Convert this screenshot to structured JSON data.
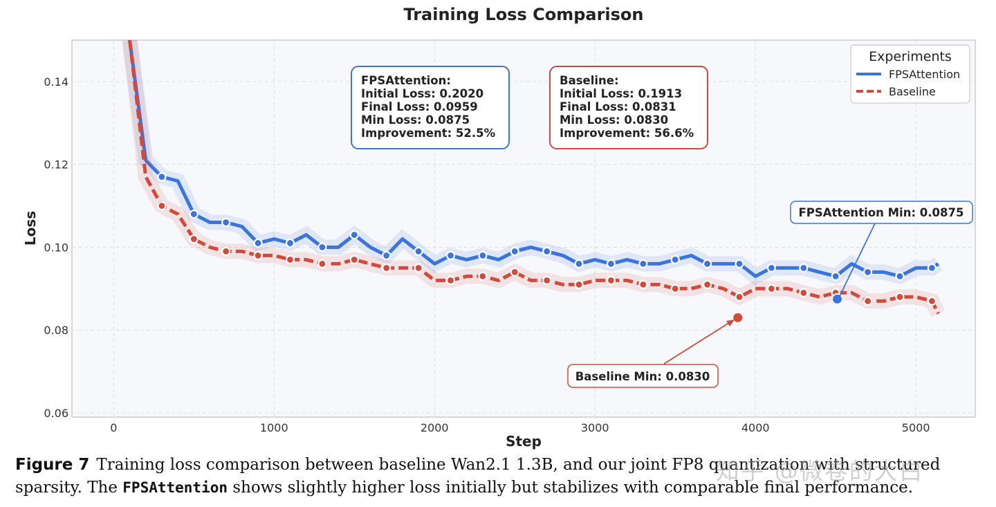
{
  "chart_data": {
    "type": "line",
    "title": "Training Loss Comparison",
    "xlabel": "Step",
    "ylabel": "Loss",
    "xlim": [
      -260,
      5370
    ],
    "ylim": [
      0.059,
      0.15
    ],
    "xticks": [
      0,
      1000,
      2000,
      3000,
      4000,
      5000
    ],
    "yticks": [
      0.06,
      0.08,
      0.1,
      0.12,
      0.14
    ],
    "ytick_labels": [
      "0.06",
      "0.08",
      "0.10",
      "0.12",
      "0.14"
    ],
    "grid": true,
    "legend": {
      "title": "Experiments",
      "placement": "top-right"
    },
    "x": [
      100,
      200,
      300,
      400,
      500,
      600,
      700,
      800,
      900,
      1000,
      1100,
      1200,
      1300,
      1400,
      1500,
      1600,
      1700,
      1800,
      1900,
      2000,
      2100,
      2200,
      2300,
      2400,
      2500,
      2600,
      2700,
      2800,
      2900,
      3000,
      3100,
      3200,
      3300,
      3400,
      3500,
      3600,
      3700,
      3800,
      3900,
      4000,
      4100,
      4200,
      4300,
      4400,
      4500,
      4600,
      4700,
      4800,
      4900,
      5000,
      5100,
      5140
    ],
    "series": [
      {
        "name": "FPSAttention",
        "color": "#3a75dd",
        "style": "solid",
        "values": [
          0.15,
          0.121,
          0.117,
          0.116,
          0.108,
          0.106,
          0.106,
          0.105,
          0.101,
          0.102,
          0.101,
          0.103,
          0.1,
          0.1,
          0.103,
          0.1,
          0.098,
          0.102,
          0.099,
          0.096,
          0.098,
          0.097,
          0.098,
          0.097,
          0.099,
          0.1,
          0.099,
          0.098,
          0.096,
          0.097,
          0.096,
          0.097,
          0.096,
          0.096,
          0.097,
          0.098,
          0.096,
          0.096,
          0.096,
          0.093,
          0.095,
          0.095,
          0.095,
          0.094,
          0.093,
          0.096,
          0.094,
          0.094,
          0.093,
          0.095,
          0.095,
          0.096
        ]
      },
      {
        "name": "Baseline",
        "color": "#d44a3a",
        "style": "dashed",
        "values": [
          0.15,
          0.117,
          0.11,
          0.108,
          0.102,
          0.1,
          0.099,
          0.099,
          0.098,
          0.098,
          0.097,
          0.097,
          0.096,
          0.096,
          0.097,
          0.096,
          0.095,
          0.095,
          0.095,
          0.092,
          0.092,
          0.093,
          0.093,
          0.092,
          0.094,
          0.092,
          0.092,
          0.091,
          0.091,
          0.092,
          0.092,
          0.092,
          0.091,
          0.091,
          0.09,
          0.09,
          0.091,
          0.09,
          0.088,
          0.09,
          0.09,
          0.09,
          0.089,
          0.088,
          0.089,
          0.089,
          0.087,
          0.087,
          0.088,
          0.088,
          0.087,
          0.084
        ]
      }
    ],
    "minima": [
      {
        "series": "FPSAttention",
        "step": 4510,
        "value": 0.0875,
        "label": "FPSAttention Min: 0.0875"
      },
      {
        "series": "Baseline",
        "step": 3890,
        "value": 0.083,
        "label": "Baseline Min: 0.0830"
      }
    ],
    "stat_boxes": [
      {
        "series": "FPSAttention",
        "lines": [
          "FPSAttention:",
          "Initial Loss: 0.2020",
          "Final Loss: 0.0959",
          "Min Loss: 0.0875",
          "Improvement: 52.5%"
        ]
      },
      {
        "series": "Baseline",
        "lines": [
          "Baseline:",
          "Initial Loss: 0.1913",
          "Final Loss: 0.0831",
          "Min Loss: 0.0830",
          "Improvement: 56.6%"
        ]
      }
    ]
  },
  "caption": {
    "figure_label": "Figure 7",
    "text_1": "Training loss comparison between baseline Wan2.1 1.3B, and our joint FP8 quantization with structured sparsity. The ",
    "code": "FPSAttention",
    "text_2": " shows slightly higher loss initially but stabilizes with comparable final performance."
  },
  "watermark": "知乎 @微卷的大白"
}
